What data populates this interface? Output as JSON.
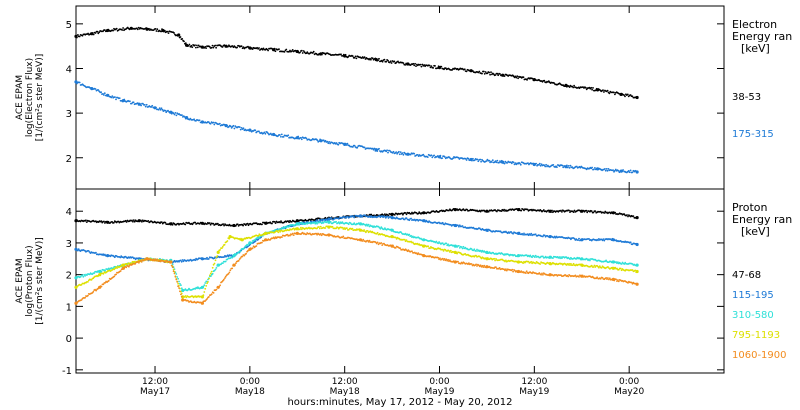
{
  "xlabel": "hours:minutes, May 17, 2012 - May 20, 2012",
  "x_ticks": [
    {
      "hours": 12,
      "time": "12:00",
      "date": "May17"
    },
    {
      "hours": 24,
      "time": "0:00",
      "date": "May18"
    },
    {
      "hours": 36,
      "time": "12:00",
      "date": "May18"
    },
    {
      "hours": 48,
      "time": "0:00",
      "date": "May19"
    },
    {
      "hours": 60,
      "time": "12:00",
      "date": "May19"
    },
    {
      "hours": 72,
      "time": "0:00",
      "date": "May20"
    }
  ],
  "chart_data": [
    {
      "type": "scatter",
      "ylabel": [
        "ACE EPAM",
        "log(Electron Flux)",
        "[1/(cm²s ster MeV)]"
      ],
      "legend_title": [
        "Electron",
        "Energy ran",
        "[keV]"
      ],
      "x_units": "hours since 2012-05-17 00:00",
      "xlim": [
        2,
        84
      ],
      "ylim": [
        1.3,
        5.4
      ],
      "yticks": [
        2,
        3,
        4,
        5
      ],
      "series": [
        {
          "name": "38-53",
          "color": "#000000",
          "x": [
            2,
            4,
            6,
            9,
            11,
            13,
            15,
            16,
            18,
            21,
            24,
            27,
            30,
            33,
            36,
            40,
            44,
            48,
            52,
            56,
            60,
            64,
            68,
            71,
            73
          ],
          "y": [
            4.72,
            4.78,
            4.85,
            4.9,
            4.88,
            4.85,
            4.75,
            4.52,
            4.48,
            4.5,
            4.46,
            4.42,
            4.38,
            4.33,
            4.28,
            4.2,
            4.1,
            4.02,
            3.95,
            3.85,
            3.75,
            3.62,
            3.52,
            3.42,
            3.35
          ]
        },
        {
          "name": "175-315",
          "color": "#1e7ad6",
          "x": [
            2,
            4,
            6,
            8,
            10,
            12,
            14,
            16,
            18,
            21,
            24,
            27,
            30,
            33,
            36,
            40,
            44,
            48,
            52,
            56,
            60,
            64,
            68,
            71,
            73
          ],
          "y": [
            3.7,
            3.55,
            3.4,
            3.28,
            3.2,
            3.12,
            3.02,
            2.9,
            2.8,
            2.72,
            2.62,
            2.52,
            2.45,
            2.38,
            2.3,
            2.18,
            2.08,
            2.02,
            1.96,
            1.9,
            1.85,
            1.8,
            1.75,
            1.7,
            1.68
          ]
        }
      ]
    },
    {
      "type": "scatter",
      "ylabel": [
        "ACE EPAM",
        "log(Proton Flux)",
        "[1/(cm²s ster MeV)]"
      ],
      "legend_title": [
        "Proton",
        "Energy ran",
        "[keV]"
      ],
      "x_units": "hours since 2012-05-17 00:00",
      "xlim": [
        2,
        84
      ],
      "ylim": [
        -1.1,
        4.7
      ],
      "yticks": [
        -1,
        0,
        1,
        2,
        3,
        4
      ],
      "series": [
        {
          "name": "47-68",
          "color": "#000000",
          "x": [
            2,
            6,
            10,
            14,
            18,
            22,
            26,
            30,
            34,
            38,
            42,
            46,
            50,
            54,
            58,
            62,
            66,
            70,
            73
          ],
          "y": [
            3.7,
            3.65,
            3.7,
            3.6,
            3.62,
            3.55,
            3.62,
            3.7,
            3.78,
            3.85,
            3.9,
            3.95,
            4.05,
            4.0,
            4.05,
            4.0,
            4.0,
            3.95,
            3.8
          ]
        },
        {
          "name": "115-195",
          "color": "#1e7ad6",
          "x": [
            2,
            6,
            10,
            14,
            18,
            22,
            26,
            30,
            34,
            38,
            42,
            46,
            50,
            54,
            58,
            62,
            66,
            70,
            73
          ],
          "y": [
            2.8,
            2.6,
            2.5,
            2.4,
            2.5,
            2.6,
            3.3,
            3.6,
            3.75,
            3.85,
            3.8,
            3.7,
            3.55,
            3.4,
            3.3,
            3.2,
            3.1,
            3.1,
            2.95
          ]
        },
        {
          "name": "310-580",
          "color": "#2fe0d8",
          "x": [
            2,
            5,
            8,
            11,
            14,
            15.5,
            18,
            20,
            22,
            24,
            26,
            30,
            34,
            38,
            42,
            46,
            50,
            54,
            58,
            62,
            66,
            70,
            73
          ],
          "y": [
            1.9,
            2.1,
            2.3,
            2.5,
            2.45,
            1.5,
            1.6,
            2.3,
            2.6,
            3.0,
            3.3,
            3.6,
            3.65,
            3.6,
            3.4,
            3.1,
            2.9,
            2.7,
            2.6,
            2.55,
            2.5,
            2.4,
            2.3
          ]
        },
        {
          "name": "795-1193",
          "color": "#dde000",
          "x": [
            2,
            5,
            8,
            11,
            14,
            15.5,
            18,
            20,
            21.5,
            23,
            26,
            30,
            34,
            38,
            42,
            46,
            50,
            54,
            58,
            62,
            66,
            70,
            73
          ],
          "y": [
            1.6,
            2.0,
            2.3,
            2.5,
            2.4,
            1.3,
            1.3,
            2.7,
            3.2,
            3.1,
            3.3,
            3.45,
            3.5,
            3.4,
            3.2,
            2.9,
            2.7,
            2.5,
            2.4,
            2.35,
            2.3,
            2.2,
            2.1
          ]
        },
        {
          "name": "1060-1900",
          "color": "#f28c1e",
          "x": [
            2,
            5,
            8,
            11,
            14,
            15.5,
            18,
            20,
            22,
            24,
            26,
            30,
            34,
            38,
            42,
            46,
            50,
            54,
            58,
            62,
            66,
            70,
            73
          ],
          "y": [
            1.1,
            1.6,
            2.2,
            2.5,
            2.4,
            1.2,
            1.1,
            1.6,
            2.3,
            2.8,
            3.1,
            3.3,
            3.25,
            3.1,
            2.9,
            2.6,
            2.4,
            2.25,
            2.1,
            2.0,
            1.95,
            1.85,
            1.7
          ]
        }
      ]
    }
  ]
}
